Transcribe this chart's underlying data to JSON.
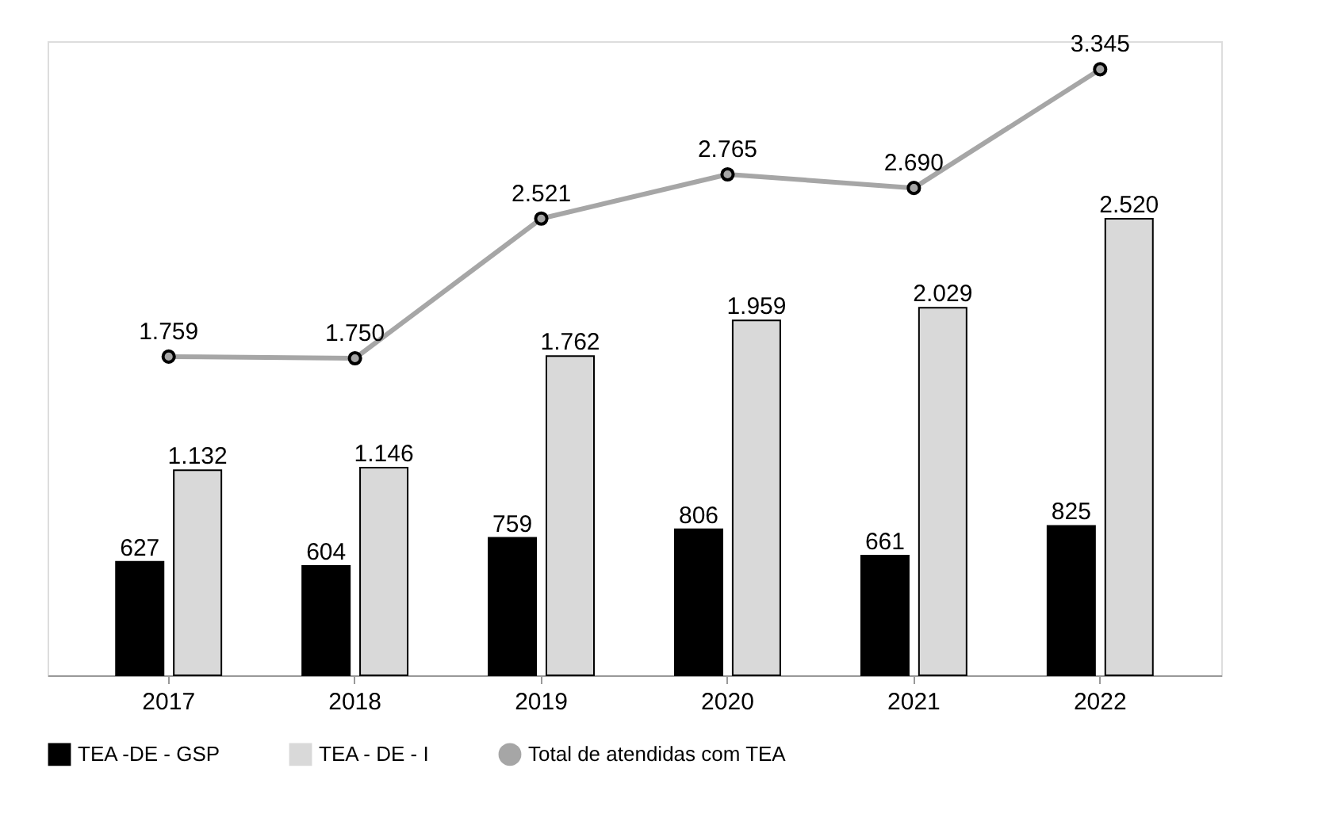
{
  "chart_data": {
    "type": "bar",
    "categories": [
      "2017",
      "2018",
      "2019",
      "2020",
      "2021",
      "2022"
    ],
    "series": [
      {
        "name": "TEA -DE - GSP",
        "color": "#000000",
        "values": [
          627,
          604,
          759,
          806,
          661,
          825
        ],
        "value_labels": [
          "627",
          "604",
          "759",
          "806",
          "661",
          "825"
        ]
      },
      {
        "name": "TEA - DE - I",
        "color": "#d9d9d9",
        "values": [
          1132,
          1146,
          1762,
          1959,
          2029,
          2520
        ],
        "value_labels": [
          "1.132",
          "1.146",
          "1.762",
          "1.959",
          "2.029",
          "2.520"
        ]
      },
      {
        "name": "Total de atendidas com TEA",
        "type": "line",
        "color": "#a6a6a6",
        "marker": "circle",
        "values": [
          1759,
          1750,
          2521,
          2765,
          2690,
          3345
        ],
        "value_labels": [
          "1.759",
          "1.750",
          "2.521",
          "2.765",
          "2.690",
          "3.345"
        ]
      }
    ],
    "legend": "bottom",
    "grid": false
  }
}
